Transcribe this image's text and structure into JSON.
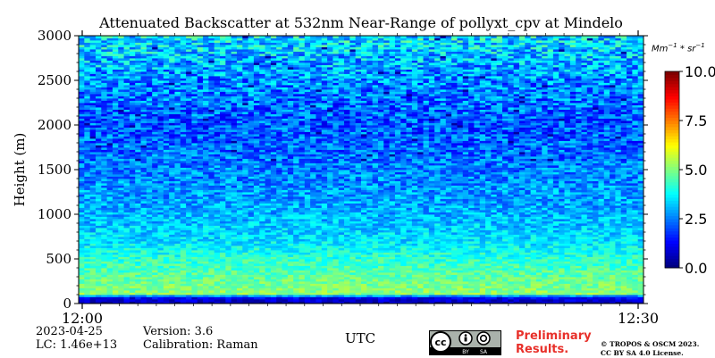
{
  "chart_data": {
    "type": "heatmap",
    "title": "Attenuated Backscatter at 532nm Near-Range of pollyxt_cpv at Mindelo",
    "xlabel": "UTC",
    "ylabel": "Height (m)",
    "x_tick_labels": [
      "12:00",
      "12:30"
    ],
    "x_range": [
      "12:00",
      "12:30"
    ],
    "y_ticks": [
      0,
      500,
      1000,
      1500,
      2000,
      2500,
      3000
    ],
    "ylim": [
      0,
      3000
    ],
    "colorbar": {
      "label": "Mm^-1*sr^-1",
      "ticks": [
        0.0,
        2.5,
        5.0,
        7.5,
        10.0
      ],
      "tick_labels": [
        "0.0",
        "2.5",
        "5.0",
        "7.5",
        "10.0"
      ],
      "range": [
        0,
        10
      ],
      "colormap": "jet"
    },
    "profile": [
      {
        "height": 0,
        "value": 0.5
      },
      {
        "height": 80,
        "value": 1.2
      },
      {
        "height": 100,
        "value": 5.2
      },
      {
        "height": 300,
        "value": 4.7
      },
      {
        "height": 500,
        "value": 4.2
      },
      {
        "height": 700,
        "value": 3.5
      },
      {
        "height": 1000,
        "value": 3.0
      },
      {
        "height": 1500,
        "value": 2.5
      },
      {
        "height": 2000,
        "value": 2.1
      },
      {
        "height": 2500,
        "value": 2.6
      },
      {
        "height": 3000,
        "value": 3.6
      }
    ]
  },
  "meta": {
    "date": "2023-04-25",
    "lc": "LC: 1.46e+13",
    "version": "Version: 3.6",
    "calibration": "Calibration: Raman"
  },
  "footer": {
    "preliminary_line1": "Preliminary",
    "preliminary_line2": "Results.",
    "copyright_line1": "© TROPOS & OSCM 2023.",
    "copyright_line2": "CC BY SA 4.0 License.",
    "cc_by": "BY",
    "cc_sa": "SA",
    "badge_icon": "cc-by-sa-icon"
  },
  "colors": {
    "low": "#0000ff",
    "mid": "#00ff7f",
    "high": "#ff0000"
  }
}
